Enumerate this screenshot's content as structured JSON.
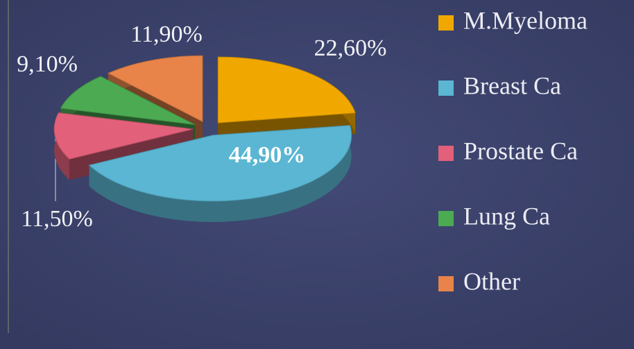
{
  "chart_data": {
    "type": "pie",
    "categories": [
      "M.Myeloma",
      "Breast Ca",
      "Prostate Ca",
      "Lung Ca",
      "Other"
    ],
    "values": [
      22.6,
      44.9,
      11.5,
      9.1,
      11.9
    ],
    "value_labels": [
      "22,60%",
      "44,90%",
      "11,50%",
      "9,10%",
      "11,90%"
    ],
    "colors": [
      "#f0a800",
      "#5ab6d2",
      "#e2607a",
      "#4caa52",
      "#e8844a"
    ]
  }
}
